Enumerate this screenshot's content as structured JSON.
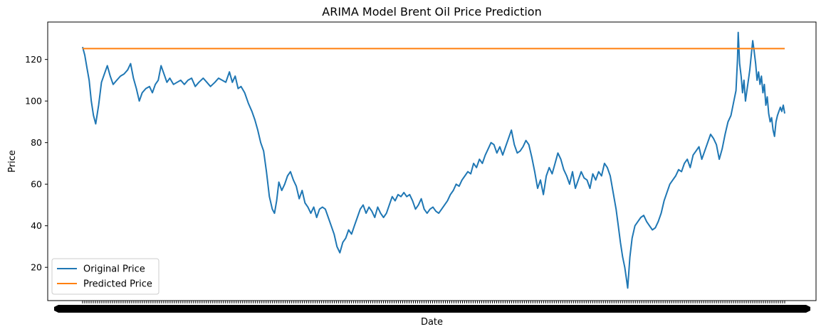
{
  "chart_data": {
    "type": "line",
    "title": "ARIMA Model Brent Oil Price Prediction",
    "xlabel": "Date",
    "ylabel": "Price",
    "ylim": [
      4,
      138
    ],
    "yticks": [
      20,
      40,
      60,
      80,
      100,
      120
    ],
    "x_tick_labels_overlapping": true,
    "grid": false,
    "legend_placement": "lower-left",
    "series": [
      {
        "name": "Original Price",
        "color": "#1f77b4",
        "points": [
          [
            0,
            126
          ],
          [
            3,
            122
          ],
          [
            6,
            116
          ],
          [
            9,
            110
          ],
          [
            12,
            100
          ],
          [
            15,
            93
          ],
          [
            18,
            89
          ],
          [
            22,
            98
          ],
          [
            26,
            109
          ],
          [
            30,
            113
          ],
          [
            34,
            117
          ],
          [
            38,
            112
          ],
          [
            42,
            108
          ],
          [
            47,
            110
          ],
          [
            52,
            112
          ],
          [
            57,
            113
          ],
          [
            62,
            115
          ],
          [
            66,
            118
          ],
          [
            70,
            111
          ],
          [
            74,
            106
          ],
          [
            78,
            100
          ],
          [
            82,
            104
          ],
          [
            87,
            106
          ],
          [
            92,
            107
          ],
          [
            96,
            104
          ],
          [
            100,
            108
          ],
          [
            104,
            110
          ],
          [
            108,
            117
          ],
          [
            112,
            113
          ],
          [
            116,
            109
          ],
          [
            120,
            111
          ],
          [
            125,
            108
          ],
          [
            130,
            109
          ],
          [
            135,
            110
          ],
          [
            140,
            108
          ],
          [
            145,
            110
          ],
          [
            150,
            111
          ],
          [
            155,
            107
          ],
          [
            160,
            109
          ],
          [
            166,
            111
          ],
          [
            171,
            109
          ],
          [
            176,
            107
          ],
          [
            182,
            109
          ],
          [
            187,
            111
          ],
          [
            192,
            110
          ],
          [
            197,
            109
          ],
          [
            202,
            114
          ],
          [
            206,
            109
          ],
          [
            210,
            112
          ],
          [
            214,
            106
          ],
          [
            218,
            107
          ],
          [
            223,
            104
          ],
          [
            228,
            99
          ],
          [
            233,
            95
          ],
          [
            237,
            91
          ],
          [
            241,
            86
          ],
          [
            245,
            80
          ],
          [
            249,
            76
          ],
          [
            253,
            66
          ],
          [
            257,
            54
          ],
          [
            261,
            48
          ],
          [
            264,
            46
          ],
          [
            267,
            52
          ],
          [
            270,
            61
          ],
          [
            274,
            57
          ],
          [
            278,
            60
          ],
          [
            282,
            64
          ],
          [
            286,
            66
          ],
          [
            290,
            62
          ],
          [
            294,
            59
          ],
          [
            298,
            53
          ],
          [
            302,
            57
          ],
          [
            306,
            51
          ],
          [
            310,
            49
          ],
          [
            314,
            46
          ],
          [
            318,
            49
          ],
          [
            322,
            44
          ],
          [
            326,
            48
          ],
          [
            330,
            49
          ],
          [
            334,
            48
          ],
          [
            338,
            44
          ],
          [
            342,
            40
          ],
          [
            346,
            36
          ],
          [
            350,
            30
          ],
          [
            354,
            27
          ],
          [
            358,
            32
          ],
          [
            362,
            34
          ],
          [
            366,
            38
          ],
          [
            370,
            36
          ],
          [
            374,
            40
          ],
          [
            378,
            44
          ],
          [
            382,
            48
          ],
          [
            386,
            50
          ],
          [
            390,
            46
          ],
          [
            394,
            49
          ],
          [
            398,
            47
          ],
          [
            402,
            44
          ],
          [
            406,
            49
          ],
          [
            410,
            46
          ],
          [
            414,
            44
          ],
          [
            418,
            46
          ],
          [
            422,
            50
          ],
          [
            426,
            54
          ],
          [
            430,
            52
          ],
          [
            434,
            55
          ],
          [
            438,
            54
          ],
          [
            442,
            56
          ],
          [
            446,
            54
          ],
          [
            450,
            55
          ],
          [
            454,
            52
          ],
          [
            458,
            48
          ],
          [
            462,
            50
          ],
          [
            466,
            53
          ],
          [
            470,
            48
          ],
          [
            474,
            46
          ],
          [
            478,
            48
          ],
          [
            482,
            49
          ],
          [
            486,
            47
          ],
          [
            490,
            46
          ],
          [
            494,
            48
          ],
          [
            498,
            50
          ],
          [
            502,
            52
          ],
          [
            506,
            55
          ],
          [
            510,
            57
          ],
          [
            514,
            60
          ],
          [
            518,
            59
          ],
          [
            522,
            62
          ],
          [
            526,
            64
          ],
          [
            530,
            66
          ],
          [
            534,
            65
          ],
          [
            538,
            70
          ],
          [
            542,
            68
          ],
          [
            546,
            72
          ],
          [
            550,
            70
          ],
          [
            554,
            74
          ],
          [
            558,
            77
          ],
          [
            562,
            80
          ],
          [
            566,
            79
          ],
          [
            570,
            75
          ],
          [
            574,
            78
          ],
          [
            578,
            74
          ],
          [
            582,
            78
          ],
          [
            586,
            82
          ],
          [
            590,
            86
          ],
          [
            594,
            79
          ],
          [
            598,
            75
          ],
          [
            602,
            76
          ],
          [
            606,
            78
          ],
          [
            610,
            81
          ],
          [
            614,
            79
          ],
          [
            618,
            73
          ],
          [
            622,
            66
          ],
          [
            626,
            58
          ],
          [
            630,
            62
          ],
          [
            634,
            55
          ],
          [
            638,
            64
          ],
          [
            642,
            68
          ],
          [
            646,
            65
          ],
          [
            650,
            70
          ],
          [
            654,
            75
          ],
          [
            658,
            72
          ],
          [
            662,
            67
          ],
          [
            666,
            64
          ],
          [
            670,
            60
          ],
          [
            674,
            66
          ],
          [
            678,
            58
          ],
          [
            682,
            62
          ],
          [
            686,
            66
          ],
          [
            690,
            63
          ],
          [
            694,
            62
          ],
          [
            698,
            58
          ],
          [
            702,
            65
          ],
          [
            706,
            62
          ],
          [
            710,
            66
          ],
          [
            714,
            64
          ],
          [
            718,
            70
          ],
          [
            722,
            68
          ],
          [
            726,
            64
          ],
          [
            730,
            56
          ],
          [
            734,
            48
          ],
          [
            737,
            40
          ],
          [
            740,
            32
          ],
          [
            743,
            25
          ],
          [
            746,
            20
          ],
          [
            748,
            15
          ],
          [
            750,
            10
          ],
          [
            753,
            25
          ],
          [
            756,
            34
          ],
          [
            760,
            40
          ],
          [
            764,
            42
          ],
          [
            768,
            44
          ],
          [
            772,
            45
          ],
          [
            776,
            42
          ],
          [
            780,
            40
          ],
          [
            784,
            38
          ],
          [
            788,
            39
          ],
          [
            792,
            42
          ],
          [
            796,
            46
          ],
          [
            800,
            52
          ],
          [
            804,
            56
          ],
          [
            808,
            60
          ],
          [
            812,
            62
          ],
          [
            816,
            64
          ],
          [
            820,
            67
          ],
          [
            824,
            66
          ],
          [
            828,
            70
          ],
          [
            832,
            72
          ],
          [
            836,
            68
          ],
          [
            840,
            74
          ],
          [
            844,
            76
          ],
          [
            848,
            78
          ],
          [
            852,
            72
          ],
          [
            856,
            76
          ],
          [
            860,
            80
          ],
          [
            864,
            84
          ],
          [
            868,
            82
          ],
          [
            872,
            79
          ],
          [
            876,
            72
          ],
          [
            880,
            77
          ],
          [
            884,
            84
          ],
          [
            888,
            90
          ],
          [
            892,
            93
          ],
          [
            896,
            100
          ],
          [
            899,
            105
          ],
          [
            901,
            120
          ],
          [
            902,
            133
          ],
          [
            904,
            118
          ],
          [
            906,
            112
          ],
          [
            908,
            104
          ],
          [
            910,
            110
          ],
          [
            912,
            100
          ],
          [
            914,
            105
          ],
          [
            916,
            110
          ],
          [
            918,
            115
          ],
          [
            920,
            122
          ],
          [
            922,
            129
          ],
          [
            924,
            124
          ],
          [
            926,
            118
          ],
          [
            928,
            110
          ],
          [
            930,
            114
          ],
          [
            932,
            108
          ],
          [
            934,
            112
          ],
          [
            936,
            104
          ],
          [
            938,
            108
          ],
          [
            940,
            98
          ],
          [
            942,
            102
          ],
          [
            944,
            94
          ],
          [
            946,
            90
          ],
          [
            948,
            92
          ],
          [
            950,
            86
          ],
          [
            952,
            83
          ],
          [
            954,
            90
          ],
          [
            956,
            93
          ],
          [
            958,
            95
          ],
          [
            960,
            97
          ],
          [
            962,
            95
          ],
          [
            964,
            98
          ],
          [
            966,
            94
          ]
        ]
      },
      {
        "name": "Predicted Price",
        "color": "#ff7f0e",
        "points": [
          [
            0,
            125.2
          ],
          [
            966,
            125.2
          ]
        ]
      }
    ]
  }
}
